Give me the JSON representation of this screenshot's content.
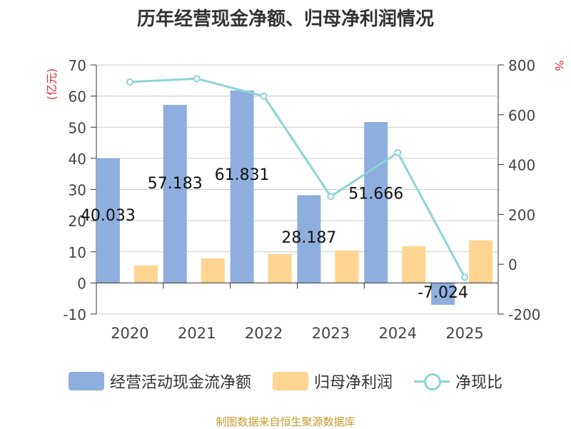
{
  "chart_data": {
    "type": "bar",
    "title": "历年经营现金净额、归母净利润情况",
    "categories": [
      "2020",
      "2021",
      "2022",
      "2023",
      "2024",
      "2025"
    ],
    "series": [
      {
        "name": "经营活动现金流净额",
        "axis": "left",
        "color": "#8eaedd",
        "values": [
          40.033,
          57.183,
          61.831,
          28.187,
          51.666,
          -7.024
        ],
        "labels": [
          "40.033",
          "57.183",
          "61.831",
          "28.187",
          "51.666",
          "-7.024"
        ]
      },
      {
        "name": "归母净利润",
        "axis": "left",
        "color": "#ffd591",
        "values": [
          5.6,
          7.9,
          9.3,
          10.4,
          11.8,
          13.7
        ]
      },
      {
        "name": "净现比",
        "axis": "right",
        "type": "line",
        "color": "#8dd3d8",
        "values": [
          732,
          745,
          675,
          272,
          448,
          -52
        ]
      }
    ],
    "y_left": {
      "label": "(亿元)",
      "min": -10,
      "max": 70,
      "ticks": [
        70,
        60,
        50,
        40,
        30,
        20,
        10,
        0,
        -10
      ]
    },
    "y_right": {
      "label": "%",
      "min": -200,
      "max": 800,
      "ticks": [
        800,
        600,
        400,
        200,
        0,
        -200
      ]
    },
    "grid": true,
    "legend_position": "bottom"
  },
  "source": "制图数据来自恒生聚源数据库"
}
